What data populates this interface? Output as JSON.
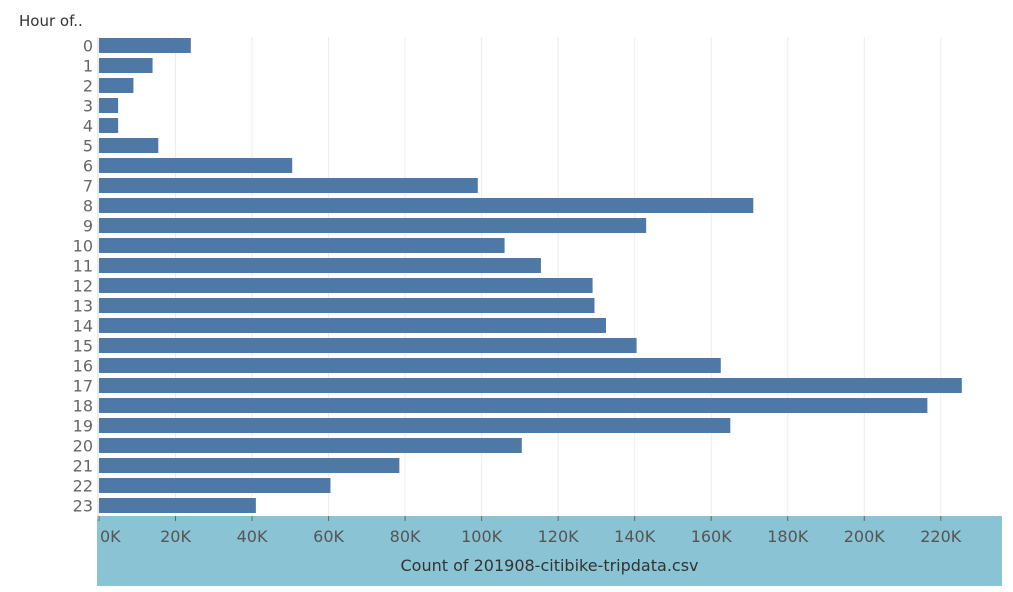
{
  "chart_data": {
    "type": "bar",
    "orientation": "horizontal",
    "row_header": "Hour of..",
    "xlabel": "Count of 201908-citibike-tripdata.csv",
    "xlim": [
      0,
      236000
    ],
    "x_ticks": [
      0,
      20000,
      40000,
      60000,
      80000,
      100000,
      120000,
      140000,
      160000,
      180000,
      200000,
      220000
    ],
    "x_tick_labels": [
      "0K",
      "20K",
      "40K",
      "60K",
      "80K",
      "100K",
      "120K",
      "140K",
      "160K",
      "180K",
      "200K",
      "220K"
    ],
    "categories": [
      "0",
      "1",
      "2",
      "3",
      "4",
      "5",
      "6",
      "7",
      "8",
      "9",
      "10",
      "11",
      "12",
      "13",
      "14",
      "15",
      "16",
      "17",
      "18",
      "19",
      "20",
      "21",
      "22",
      "23"
    ],
    "values": [
      24000,
      14000,
      9000,
      5000,
      5000,
      15500,
      50500,
      99000,
      171000,
      143000,
      106000,
      115500,
      129000,
      129500,
      132500,
      140500,
      162500,
      225500,
      216500,
      165000,
      110500,
      78500,
      60500,
      41000
    ],
    "grid": true,
    "colors": {
      "bar": "#4e79a7",
      "axis_band": "#8ac3d3",
      "grid": "#ececec",
      "tick_text": "#666666",
      "title_text": "#333333"
    }
  }
}
